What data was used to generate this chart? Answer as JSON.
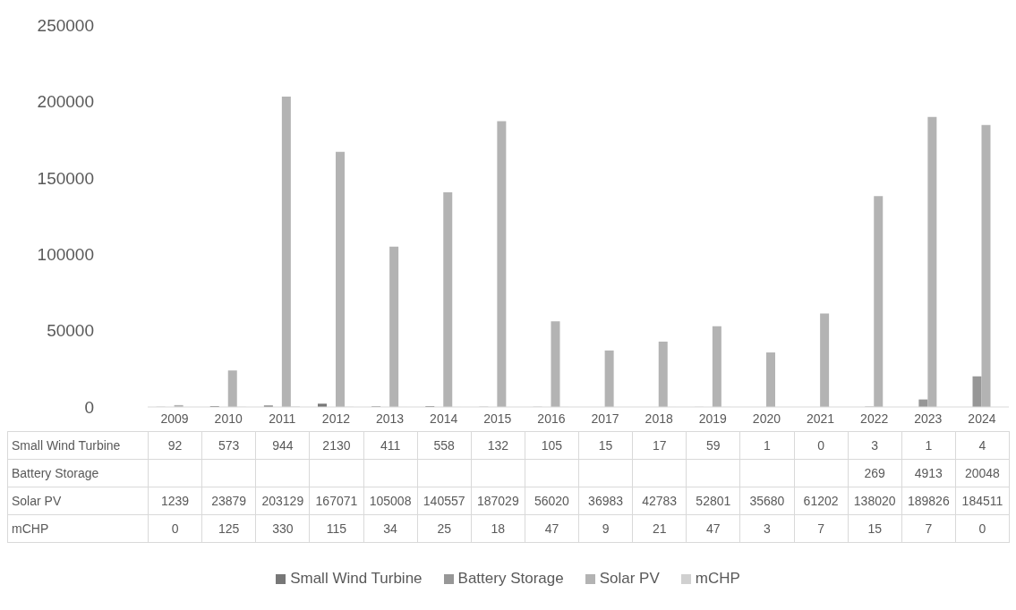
{
  "chart_data": {
    "type": "bar",
    "categories": [
      "2009",
      "2010",
      "2011",
      "2012",
      "2013",
      "2014",
      "2015",
      "2016",
      "2017",
      "2018",
      "2019",
      "2020",
      "2021",
      "2022",
      "2023",
      "2024"
    ],
    "series": [
      {
        "name": "Small Wind Turbine",
        "color": "#777777",
        "values": [
          92,
          573,
          944,
          2130,
          411,
          558,
          132,
          105,
          15,
          17,
          59,
          1,
          0,
          3,
          1,
          4
        ]
      },
      {
        "name": "Battery Storage",
        "color": "#979797",
        "values": [
          null,
          null,
          null,
          null,
          null,
          null,
          null,
          null,
          null,
          null,
          null,
          null,
          null,
          269,
          4913,
          20048
        ]
      },
      {
        "name": "Solar PV",
        "color": "#b3b3b3",
        "values": [
          1239,
          23879,
          203129,
          167071,
          105008,
          140557,
          187029,
          56020,
          36983,
          42783,
          52801,
          35680,
          61202,
          138020,
          189826,
          184511
        ]
      },
      {
        "name": "mCHP",
        "color": "#d0d0d0",
        "values": [
          0,
          125,
          330,
          115,
          34,
          25,
          18,
          47,
          9,
          21,
          47,
          3,
          7,
          15,
          7,
          0
        ]
      }
    ],
    "ylim": [
      0,
      250000
    ],
    "yticks": [
      0,
      50000,
      100000,
      150000,
      200000,
      250000
    ],
    "data_labels": true,
    "legend": "bottom"
  }
}
